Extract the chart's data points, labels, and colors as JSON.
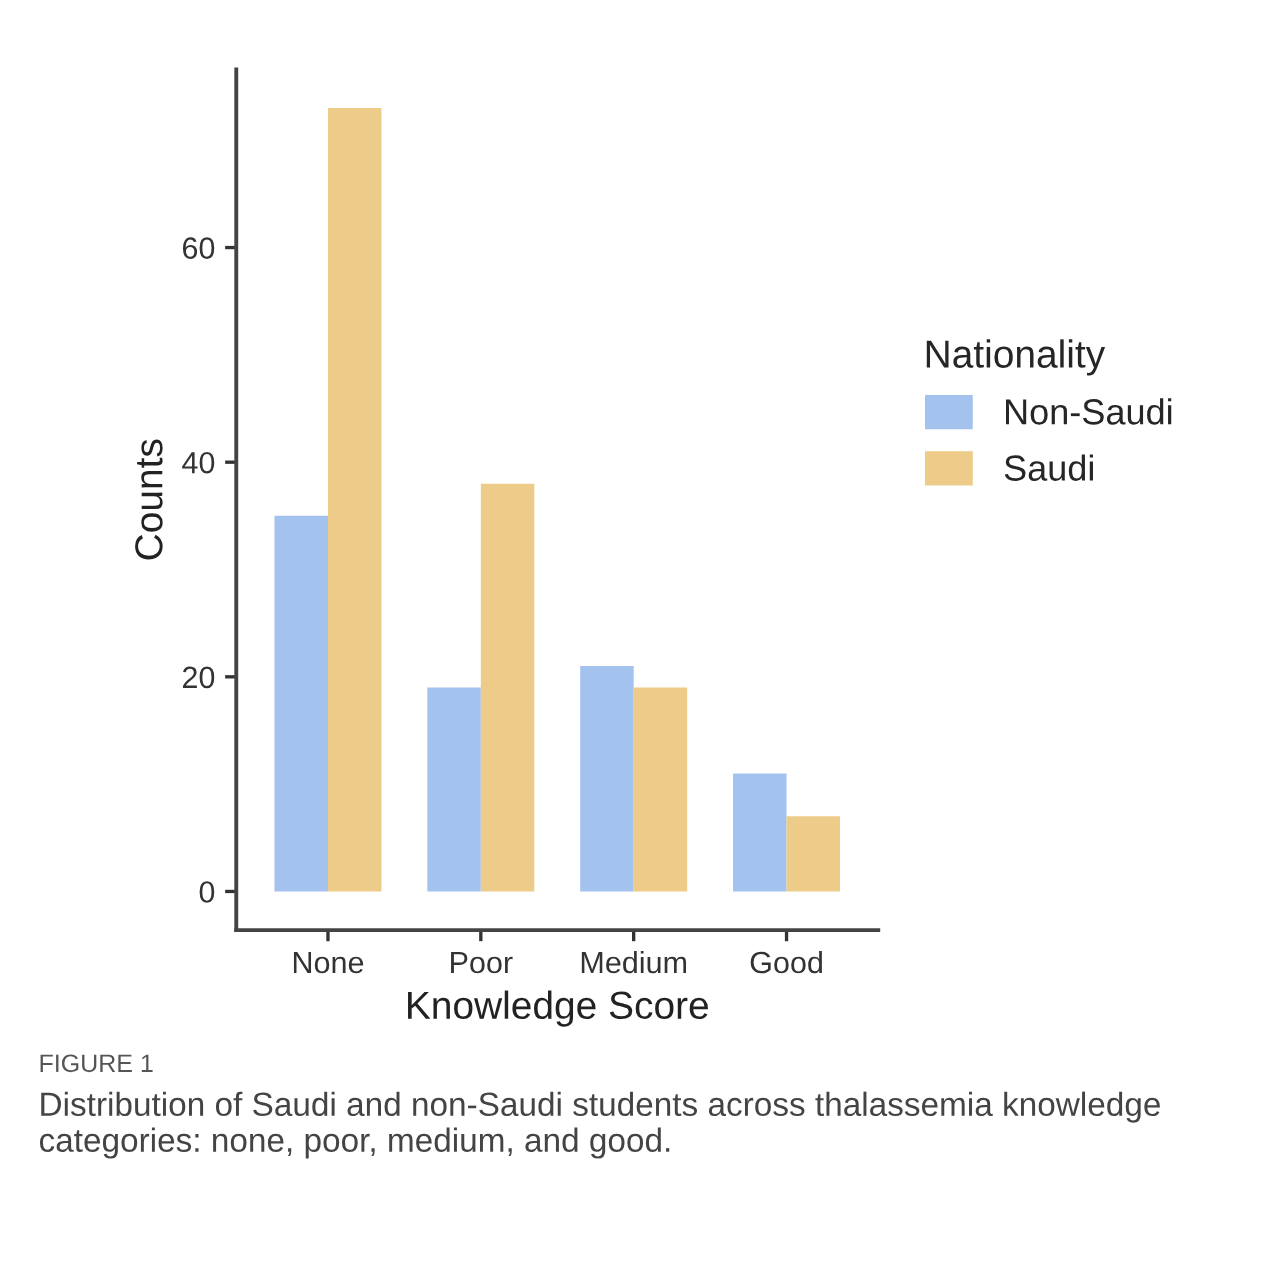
{
  "chart_data": {
    "type": "bar",
    "xlabel": "Knowledge Score",
    "ylabel": "Counts",
    "legend_title": "Nationality",
    "legend": "right",
    "categories": [
      "None",
      "Poor",
      "Medium",
      "Good"
    ],
    "series": [
      {
        "name": "Non-Saudi",
        "color": "#a4c2ee",
        "values": [
          35,
          19,
          21,
          11
        ]
      },
      {
        "name": "Saudi",
        "color": "#edcb88",
        "values": [
          73,
          38,
          19,
          7
        ]
      }
    ],
    "ylim": [
      -3.6,
      76.6
    ],
    "yticks": [
      0,
      20,
      40,
      60
    ],
    "grid": false,
    "annotations": [
      "FIGURE 1",
      "Distribution of Saudi and non-Saudi students across thalassemia knowledge categories: none, poor, medium, and good."
    ]
  }
}
